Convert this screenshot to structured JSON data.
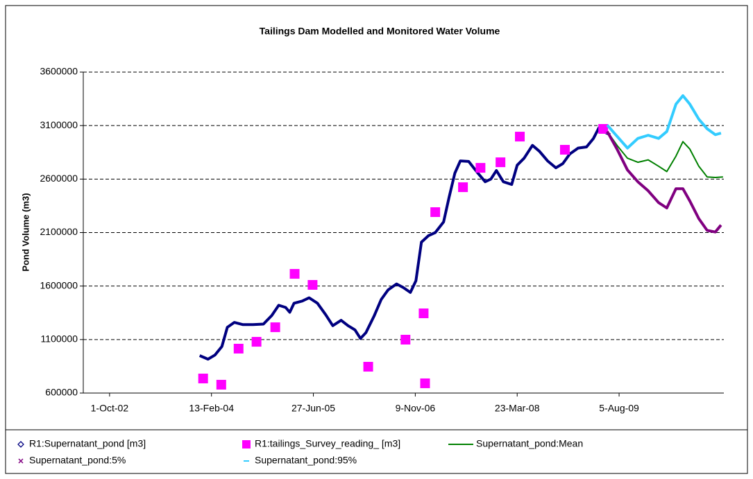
{
  "chart_data": {
    "type": "line",
    "title": "Tailings Dam Modelled and Monitored Water Volume",
    "y_label": "Pond Volume (m3)",
    "xlim": [
      "2002-05-25",
      "2011-01-01"
    ],
    "xticks": [
      {
        "value": "2002-10-01",
        "label": "1-Oct-02"
      },
      {
        "value": "2004-02-13",
        "label": "13-Feb-04"
      },
      {
        "value": "2005-06-27",
        "label": "27-Jun-05"
      },
      {
        "value": "2006-11-09",
        "label": "9-Nov-06"
      },
      {
        "value": "2008-03-23",
        "label": "23-Mar-08"
      },
      {
        "value": "2009-08-05",
        "label": "5-Aug-09"
      }
    ],
    "ylim": [
      600000,
      3600000
    ],
    "yticks": [
      600000,
      1100000,
      1600000,
      2100000,
      2600000,
      3100000,
      3600000
    ],
    "grid": true,
    "legend": "bottom",
    "series": [
      {
        "name": "R1:Supernatant_pond [m3]",
        "color": "#000080",
        "mode": "line",
        "marker": "diamond",
        "x": [
          "2003-12-17",
          "2004-01-27",
          "2004-03-01",
          "2004-04-04",
          "2004-05-01",
          "2004-06-04",
          "2004-07-15",
          "2004-09-04",
          "2004-10-25",
          "2004-12-05",
          "2005-01-08",
          "2005-02-11",
          "2005-03-03",
          "2005-03-24",
          "2005-05-03",
          "2005-06-06",
          "2005-07-17",
          "2005-08-27",
          "2005-09-30",
          "2005-11-10",
          "2005-12-14",
          "2006-01-17",
          "2006-02-13",
          "2006-03-12",
          "2006-04-22",
          "2006-05-26",
          "2006-06-29",
          "2006-08-09",
          "2006-09-12",
          "2006-10-16",
          "2006-11-12",
          "2006-12-09",
          "2007-01-12",
          "2007-02-15",
          "2007-03-28",
          "2007-04-24",
          "2007-05-22",
          "2007-06-18",
          "2007-07-29",
          "2007-09-08",
          "2007-10-18",
          "2007-11-15",
          "2007-12-12",
          "2008-01-15",
          "2008-02-25",
          "2008-03-23",
          "2008-04-26",
          "2008-06-06",
          "2008-07-10",
          "2008-08-19",
          "2008-09-29",
          "2008-11-02",
          "2008-12-06",
          "2009-01-16",
          "2009-02-26",
          "2009-04-01",
          "2009-04-28",
          "2009-05-25",
          "2009-06-22"
        ],
        "values": [
          950000,
          917000,
          955000,
          1035000,
          1215000,
          1260000,
          1240000,
          1240000,
          1245000,
          1325000,
          1420000,
          1400000,
          1355000,
          1440000,
          1460000,
          1490000,
          1440000,
          1330000,
          1230000,
          1280000,
          1230000,
          1190000,
          1110000,
          1165000,
          1325000,
          1475000,
          1565000,
          1620000,
          1585000,
          1540000,
          1650000,
          2010000,
          2070000,
          2100000,
          2200000,
          2430000,
          2655000,
          2770000,
          2765000,
          2665000,
          2575000,
          2600000,
          2680000,
          2575000,
          2550000,
          2730000,
          2795000,
          2915000,
          2860000,
          2770000,
          2705000,
          2745000,
          2835000,
          2890000,
          2900000,
          2980000,
          3080000,
          3040000,
          3015000
        ]
      },
      {
        "name": "R1:tailings_Survey_reading_ [m3]",
        "color": "#ff00ff",
        "mode": "markers",
        "marker": "square",
        "x": [
          "2004-01-03",
          "2004-04-01",
          "2004-06-25",
          "2004-09-21",
          "2004-12-22",
          "2005-03-27",
          "2005-06-23",
          "2006-03-23",
          "2006-09-22",
          "2006-12-20",
          "2006-12-27",
          "2007-02-15",
          "2007-07-01",
          "2007-09-25",
          "2008-01-01",
          "2008-04-05",
          "2008-11-12",
          "2009-05-19"
        ],
        "values": [
          736000,
          678000,
          1015000,
          1079000,
          1215000,
          1714000,
          1611000,
          846000,
          1099000,
          1345000,
          691000,
          2291000,
          2524000,
          2705000,
          2757000,
          2997000,
          2874000,
          3069000
        ]
      },
      {
        "name": "Supernatant_pond:Mean",
        "color": "#008000",
        "mode": "line",
        "marker": "line",
        "x": [
          "2009-06-08",
          "2009-07-26",
          "2009-09-15",
          "2009-11-05",
          "2009-12-26",
          "2010-02-15",
          "2010-03-27",
          "2010-05-11",
          "2010-06-14",
          "2010-07-18",
          "2010-08-31",
          "2010-10-11",
          "2010-11-20",
          "2010-12-28"
        ],
        "values": [
          3045000,
          2915000,
          2795000,
          2757000,
          2780000,
          2720000,
          2670000,
          2815000,
          2950000,
          2880000,
          2720000,
          2620000,
          2615000,
          2620000
        ]
      },
      {
        "name": "Supernatant_pond:5%",
        "color": "#800080",
        "mode": "line",
        "marker": "x",
        "x": [
          "2009-06-08",
          "2009-07-26",
          "2009-09-15",
          "2009-11-05",
          "2009-12-26",
          "2010-02-15",
          "2010-03-27",
          "2010-05-11",
          "2010-06-14",
          "2010-07-18",
          "2010-08-31",
          "2010-10-11",
          "2010-11-20",
          "2010-12-18"
        ],
        "values": [
          3045000,
          2880000,
          2685000,
          2575000,
          2490000,
          2380000,
          2330000,
          2510000,
          2510000,
          2395000,
          2230000,
          2120000,
          2105000,
          2170000
        ]
      },
      {
        "name": "Supernatant_pond:95%",
        "color": "#33ccff",
        "mode": "line",
        "marker": "dash",
        "x": [
          "2009-06-08",
          "2009-07-26",
          "2009-09-15",
          "2009-11-05",
          "2009-12-26",
          "2010-02-15",
          "2010-03-27",
          "2010-05-11",
          "2010-06-14",
          "2010-07-18",
          "2010-08-31",
          "2010-10-11",
          "2010-11-20",
          "2010-12-18"
        ],
        "values": [
          3105000,
          3000000,
          2890000,
          2980000,
          3010000,
          2980000,
          3045000,
          3300000,
          3380000,
          3300000,
          3160000,
          3070000,
          3015000,
          3030000
        ]
      }
    ]
  }
}
